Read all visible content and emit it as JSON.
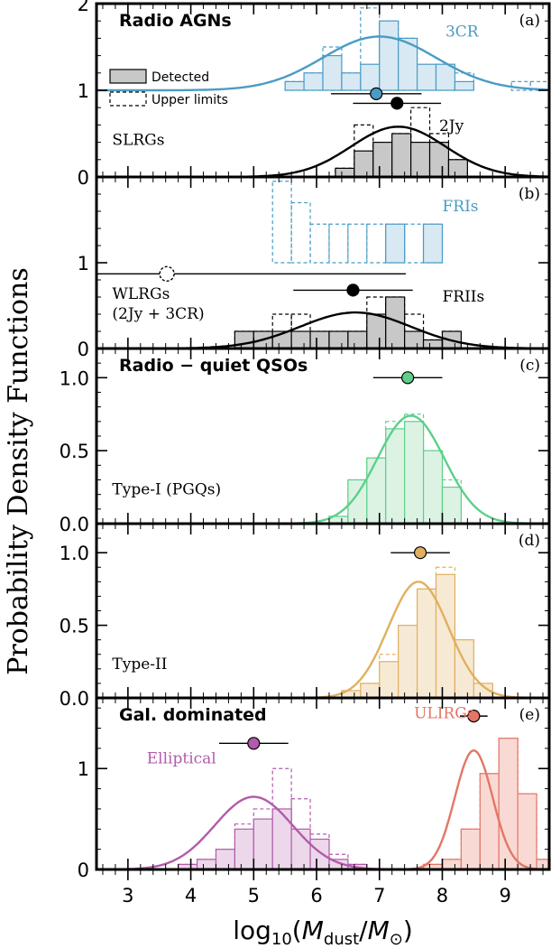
{
  "figure": {
    "ylabel": "Probability Density Functions",
    "xlabel_parts": {
      "pre": "log",
      "sub10": "10",
      "open": "(",
      "M": "M",
      "dust": "dust",
      "slash": "/",
      "M2": "M",
      "sun": "⊙",
      "close": ")"
    }
  },
  "chart_data": [
    {
      "type": "bar",
      "panel": "a",
      "panel_label": "(a)",
      "title": "Radio AGNs",
      "ylim": [
        0,
        2
      ],
      "xlim": [
        2.5,
        9.7
      ],
      "yticks": [
        {
          "v": 0,
          "t": "0"
        },
        {
          "v": 1,
          "t": "1"
        },
        {
          "v": 2,
          "t": "2"
        }
      ],
      "legend": {
        "detected": "Detected",
        "upper": "Upper limits",
        "position": "upper-left"
      },
      "texts": [
        {
          "t": "3CR",
          "x": 8.05,
          "y": 1.62,
          "color": "#4a9bc5"
        },
        {
          "t": "2Jy",
          "x": 7.95,
          "y": 0.53,
          "color": "#000000"
        },
        {
          "t": "SLRGs",
          "x": 2.75,
          "y": 0.37,
          "color": "#000000"
        }
      ],
      "series": [
        {
          "name": "3CR",
          "color": "#4a9bc5",
          "fill": "#d8e9f3",
          "base": 1.0,
          "bin_start": 5.5,
          "bin_width": 0.3,
          "detected": [
            0.1,
            0.2,
            0.4,
            0.2,
            0.3,
            0.8,
            0.6,
            0.3,
            0.3,
            0.1,
            0,
            0,
            0,
            0
          ],
          "upper": [
            0.1,
            0.2,
            0.5,
            0.2,
            0.95,
            0.8,
            0.6,
            0.2,
            0.3,
            0.2,
            0,
            0,
            0.1,
            0.1
          ],
          "gauss": {
            "mu": 7.0,
            "sigma": 0.9,
            "amp": 0.62
          },
          "errorbar": {
            "x": 6.95,
            "y": 0.96,
            "xerr": 0.72
          }
        },
        {
          "name": "2Jy",
          "color": "#000000",
          "fill": "#c8c8c8",
          "base": 0,
          "bin_start": 6.3,
          "bin_width": 0.3,
          "detected": [
            0.1,
            0.3,
            0.4,
            0.5,
            0.4,
            0.4,
            0.2
          ],
          "upper": [
            0.1,
            0.6,
            0.4,
            0.5,
            0.8,
            0.5,
            0.2
          ],
          "gauss": {
            "mu": 7.3,
            "sigma": 0.75,
            "amp": 0.58
          },
          "errorbar": {
            "x": 7.28,
            "y": 0.85,
            "xerr": 0.7
          }
        }
      ]
    },
    {
      "type": "bar",
      "panel": "b",
      "panel_label": "(b)",
      "title": "",
      "ylim": [
        0,
        2
      ],
      "xlim": [
        2.5,
        9.7
      ],
      "yticks": [
        {
          "v": 0,
          "t": "0"
        },
        {
          "v": 1,
          "t": "1"
        }
      ],
      "texts": [
        {
          "t": "FRIs",
          "x": 8.0,
          "y": 1.6,
          "color": "#4a9bc5"
        },
        {
          "t": "FRIIs",
          "x": 8.0,
          "y": 0.55,
          "color": "#000000"
        },
        {
          "t": "WLRGs",
          "x": 2.75,
          "y": 0.58,
          "color": "#000000"
        },
        {
          "t": "(2Jy + 3CR)",
          "x": 2.75,
          "y": 0.35,
          "color": "#000000"
        }
      ],
      "series": [
        {
          "name": "FRIs",
          "color": "#4a9bc5",
          "fill": "#d8e9f3",
          "base": 1.0,
          "bin_start": 5.3,
          "bin_width": 0.3,
          "detected": [
            0,
            0,
            0,
            0,
            0,
            0,
            0.45,
            0,
            0.45
          ],
          "upper": [
            0.95,
            0.7,
            0.45,
            0.45,
            0.45,
            0.45,
            0.45,
            0.45,
            0.45
          ],
          "gauss": null,
          "errorbar": {
            "x": 3.62,
            "y": 0.87,
            "xerr": 3.8,
            "hollow": true
          }
        },
        {
          "name": "FRIIs",
          "color": "#000000",
          "fill": "#c8c8c8",
          "base": 0,
          "bin_start": 4.7,
          "bin_width": 0.3,
          "detected": [
            0.2,
            0.2,
            0.2,
            0.2,
            0.2,
            0.2,
            0.2,
            0.4,
            0.6,
            0.2,
            0.1,
            0.2
          ],
          "upper": [
            0.2,
            0.2,
            0.4,
            0.4,
            0.2,
            0.2,
            0.2,
            0.6,
            0.6,
            0.4,
            0.1,
            0.2
          ],
          "gauss": {
            "mu": 6.62,
            "sigma": 0.88,
            "amp": 0.42
          },
          "errorbar": {
            "x": 6.58,
            "y": 0.68,
            "xerr": 0.95
          }
        }
      ]
    },
    {
      "type": "bar",
      "panel": "c",
      "panel_label": "(c)",
      "title": "Radio − quiet QSOs",
      "ylim": [
        0,
        1.2
      ],
      "xlim": [
        2.5,
        9.7
      ],
      "yticks": [
        {
          "v": 0,
          "t": "0.0"
        },
        {
          "v": 0.5,
          "t": "0.5"
        },
        {
          "v": 1.0,
          "t": "1.0"
        }
      ],
      "texts": [
        {
          "t": "Type-I (PGQs)",
          "x": 2.75,
          "y": 0.2,
          "color": "#000000"
        }
      ],
      "series": [
        {
          "name": "Type-I (PGQs)",
          "color": "#5dcf8a",
          "fill": "#dcf3e4",
          "base": 0,
          "bin_start": 6.2,
          "bin_width": 0.3,
          "detected": [
            0.05,
            0.3,
            0.45,
            0.65,
            0.7,
            0.5,
            0.25
          ],
          "upper": [
            0.05,
            0.3,
            0.45,
            0.7,
            0.75,
            0.5,
            0.3
          ],
          "gauss": {
            "mu": 7.5,
            "sigma": 0.53,
            "amp": 0.74
          },
          "errorbar": {
            "x": 7.45,
            "y": 1.0,
            "xerr": 0.55
          }
        }
      ]
    },
    {
      "type": "bar",
      "panel": "d",
      "panel_label": "(d)",
      "title": "",
      "ylim": [
        0,
        1.2
      ],
      "xlim": [
        2.5,
        9.7
      ],
      "yticks": [
        {
          "v": 0,
          "t": "0.0"
        },
        {
          "v": 0.5,
          "t": "0.5"
        },
        {
          "v": 1.0,
          "t": "1.0"
        }
      ],
      "texts": [
        {
          "t": "Type-II",
          "x": 2.75,
          "y": 0.2,
          "color": "#000000"
        }
      ],
      "series": [
        {
          "name": "Type-II",
          "color": "#e0b060",
          "fill": "#f7ead5",
          "base": 0,
          "bin_start": 6.4,
          "bin_width": 0.3,
          "detected": [
            0.05,
            0.1,
            0.25,
            0.5,
            0.75,
            0.85,
            0.4,
            0.1
          ],
          "upper": [
            0.05,
            0.1,
            0.3,
            0.5,
            0.75,
            0.9,
            0.4,
            0.1
          ],
          "gauss": {
            "mu": 7.62,
            "sigma": 0.48,
            "amp": 0.8
          },
          "errorbar": {
            "x": 7.65,
            "y": 1.0,
            "xerr": 0.47
          }
        }
      ]
    },
    {
      "type": "bar",
      "panel": "e",
      "panel_label": "(e)",
      "title": "Gal. dominated",
      "ylim": [
        0,
        1.7
      ],
      "xlim": [
        2.5,
        9.7
      ],
      "yticks": [
        {
          "v": 0,
          "t": "0"
        },
        {
          "v": 1,
          "t": "1"
        }
      ],
      "texts": [
        {
          "t": "Elliptical",
          "x": 3.3,
          "y": 1.05,
          "color": "#b35aab"
        },
        {
          "t": "ULIRGs",
          "x": 7.55,
          "y": 1.5,
          "color": "#e37666"
        }
      ],
      "series": [
        {
          "name": "Elliptical",
          "color": "#b35aab",
          "fill": "#ecd8ea",
          "base": 0,
          "bin_start": 3.8,
          "bin_width": 0.3,
          "detected": [
            0.05,
            0.1,
            0.2,
            0.4,
            0.5,
            0.6,
            0.4,
            0.3,
            0.1,
            0.05
          ],
          "upper": [
            0.05,
            0.1,
            0.2,
            0.45,
            0.6,
            1.0,
            0.7,
            0.35,
            0.15,
            0.05
          ],
          "gauss": {
            "mu": 5.0,
            "sigma": 0.62,
            "amp": 0.72
          },
          "errorbar": {
            "x": 5.0,
            "y": 1.25,
            "xerr": 0.55
          }
        },
        {
          "name": "ULIRGs",
          "color": "#e37666",
          "fill": "#f9d9d4",
          "base": 0,
          "bin_start": 7.7,
          "bin_width": 0.3,
          "detected": [
            0.05,
            0.1,
            0.4,
            0.95,
            1.3,
            0.75,
            0.1
          ],
          "upper": [
            0.05,
            0.1,
            0.4,
            0.95,
            1.3,
            0.75,
            0.1
          ],
          "gauss": {
            "mu": 8.5,
            "sigma": 0.3,
            "amp": 1.18
          },
          "errorbar": {
            "x": 8.5,
            "y": 1.52,
            "xerr": 0.22
          }
        }
      ]
    }
  ],
  "x_axis": {
    "ticks": [
      {
        "v": 3,
        "t": "3"
      },
      {
        "v": 4,
        "t": "4"
      },
      {
        "v": 5,
        "t": "5"
      },
      {
        "v": 6,
        "t": "6"
      },
      {
        "v": 7,
        "t": "7"
      },
      {
        "v": 8,
        "t": "8"
      },
      {
        "v": 9,
        "t": "9"
      }
    ]
  }
}
